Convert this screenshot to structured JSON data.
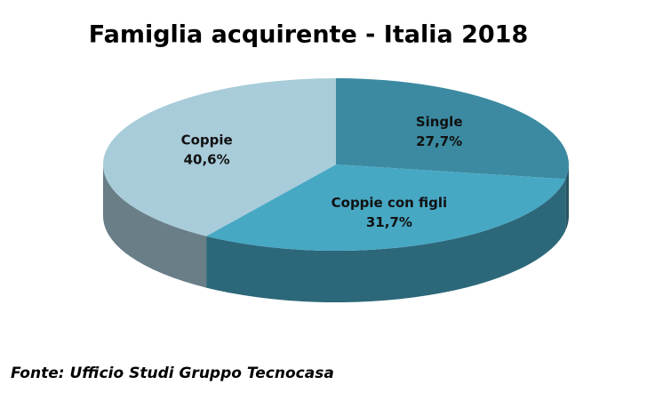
{
  "chart_data": {
    "type": "pie",
    "title": "Famiglia acquirente - Italia 2018",
    "categories": [
      "Single",
      "Coppie con figli",
      "Coppie"
    ],
    "values": [
      27.7,
      31.7,
      40.6
    ],
    "value_labels": [
      "27,7%",
      "31,7%",
      "40,6%"
    ],
    "colors": [
      "#3b8aa1",
      "#47a8c4",
      "#a9ccda"
    ],
    "source": "Fonte: Ufficio Studi Gruppo Tecnocasa"
  }
}
